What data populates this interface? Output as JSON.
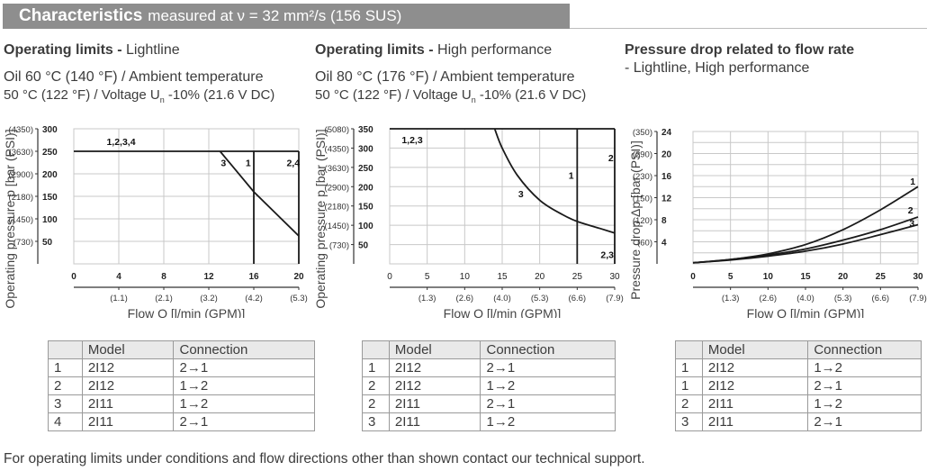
{
  "header": {
    "title_bold": "Characteristics",
    "title_rest": "measured at ν = 32 mm²/s (156 SUS)"
  },
  "sections": [
    {
      "title_bold": "Operating limits -",
      "title_rest": " Lightline",
      "line1": "Oil 60 °C (140 °F) / Ambient temperature",
      "line2": "50 °C (122 °F) / Voltage U",
      "line2_sub": "n",
      "line2_end": " -10% (21.6 V DC)"
    },
    {
      "title_bold": "Operating limits -",
      "title_rest": " High performance",
      "line1": "Oil 80 °C (176 °F) / Ambient temperature",
      "line2": "50 °C (122 °F) / Voltage U",
      "line2_sub": "n",
      "line2_end": " -10% (21.6 V DC)"
    },
    {
      "title_bold": "Pressure drop related to flow rate",
      "title_rest": "",
      "line1": "- Lightline, High performance"
    }
  ],
  "chart_data": [
    {
      "type": "line",
      "title": "Operating limits - Lightline",
      "xlabel": "Flow Q [l/min (GPM)]",
      "ylabel": "Operating pressure p [bar (PSI)]",
      "xlim": [
        0,
        20
      ],
      "ylim": [
        0,
        300
      ],
      "x_ticks": [
        0,
        4,
        8,
        12,
        16,
        20
      ],
      "x_ticks_secondary": [
        "(1.1)",
        "(2.1)",
        "(3.2)",
        "(4.2)",
        "(5.3)"
      ],
      "y_ticks": [
        50,
        100,
        150,
        200,
        250,
        300
      ],
      "y_ticks_secondary": [
        "(730)",
        "(1450)",
        "(2180)",
        "(2900)",
        "(3630)",
        "(4350)"
      ],
      "grid": true,
      "series": [
        {
          "name": "1,2,3,4",
          "points": [
            [
              0,
              250
            ],
            [
              20,
              250
            ]
          ]
        },
        {
          "name": "1",
          "points": [
            [
              16,
              250
            ],
            [
              16,
              0
            ]
          ]
        },
        {
          "name": "2,4",
          "points": [
            [
              20,
              250
            ],
            [
              20,
              0
            ]
          ]
        },
        {
          "name": "3",
          "points": [
            [
              13,
              250
            ],
            [
              16,
              160
            ],
            [
              20,
              62
            ]
          ]
        }
      ],
      "annotations": [
        "1,2,3,4",
        "3",
        "1",
        "2,4"
      ]
    },
    {
      "type": "line",
      "title": "Operating limits - High performance",
      "xlabel": "Flow Q [l/min (GPM)]",
      "ylabel": "Operating pressure p [bar (PSI)]",
      "xlim": [
        0,
        30
      ],
      "ylim": [
        0,
        350
      ],
      "x_ticks": [
        0,
        5,
        10,
        15,
        20,
        25,
        30
      ],
      "x_ticks_secondary": [
        "(1.3)",
        "(2.6)",
        "(4.0)",
        "(5.3)",
        "(6.6)",
        "(7.9)"
      ],
      "y_ticks": [
        50,
        100,
        150,
        200,
        250,
        300,
        350
      ],
      "y_ticks_secondary": [
        "(730)",
        "(1450)",
        "(2180)",
        "(2900)",
        "(3630)",
        "(4350)",
        "(5080)"
      ],
      "grid": true,
      "series": [
        {
          "name": "1,2,3",
          "points": [
            [
              0,
              350
            ],
            [
              30,
              350
            ]
          ]
        },
        {
          "name": "1",
          "points": [
            [
              25,
              350
            ],
            [
              25,
              0
            ]
          ]
        },
        {
          "name": "2",
          "points": [
            [
              30,
              350
            ],
            [
              30,
              0
            ]
          ]
        },
        {
          "name": "3",
          "points": [
            [
              14,
              350
            ],
            [
              15,
              300
            ],
            [
              17,
              230
            ],
            [
              20,
              165
            ],
            [
              23,
              128
            ],
            [
              25,
              110
            ],
            [
              28,
              92
            ],
            [
              30,
              80
            ]
          ]
        }
      ],
      "annotations": [
        "1,2,3",
        "3",
        "1",
        "2",
        "2,3"
      ]
    },
    {
      "type": "line",
      "title": "Pressure drop related to flow rate - Lightline, High performance",
      "xlabel": "Flow Q [l/min (GPM)]",
      "ylabel": "Pressure drop Δp [bar (PSI)]",
      "xlim": [
        0,
        30
      ],
      "ylim": [
        0,
        24
      ],
      "x_ticks": [
        0,
        5,
        10,
        15,
        20,
        25,
        30
      ],
      "x_ticks_secondary": [
        "(1.3)",
        "(2.6)",
        "(4.0)",
        "(5.3)",
        "(6.6)",
        "(7.9)"
      ],
      "y_ticks": [
        4,
        8,
        12,
        16,
        20,
        24
      ],
      "y_ticks_secondary": [
        "(60)",
        "(120)",
        "(150)",
        "(230)",
        "(290)",
        "(350)"
      ],
      "grid": true,
      "series": [
        {
          "name": "1",
          "points": [
            [
              0,
              0.2
            ],
            [
              5,
              0.8
            ],
            [
              10,
              1.8
            ],
            [
              15,
              3.5
            ],
            [
              20,
              6.2
            ],
            [
              25,
              9.8
            ],
            [
              30,
              14
            ]
          ]
        },
        {
          "name": "2",
          "points": [
            [
              0,
              0.2
            ],
            [
              5,
              0.8
            ],
            [
              10,
              1.6
            ],
            [
              15,
              2.7
            ],
            [
              20,
              4.3
            ],
            [
              25,
              6.2
            ],
            [
              30,
              8.5
            ]
          ]
        },
        {
          "name": "3",
          "points": [
            [
              0,
              0.2
            ],
            [
              5,
              0.7
            ],
            [
              10,
              1.4
            ],
            [
              15,
              2.3
            ],
            [
              20,
              3.6
            ],
            [
              25,
              5.3
            ],
            [
              30,
              7.1
            ]
          ]
        }
      ]
    }
  ],
  "tables": [
    {
      "headers": [
        "",
        "Model",
        "Connection"
      ],
      "rows": [
        [
          "1",
          "2I12",
          "2→1"
        ],
        [
          "2",
          "2I12",
          "1→2"
        ],
        [
          "3",
          "2I11",
          "1→2"
        ],
        [
          "4",
          "2I11",
          "2→1"
        ]
      ]
    },
    {
      "headers": [
        "",
        "Model",
        "Connection"
      ],
      "rows": [
        [
          "1",
          "2I12",
          "2→1"
        ],
        [
          "2",
          "2I12",
          "1→2"
        ],
        [
          "2",
          "2I11",
          "2→1"
        ],
        [
          "3",
          "2I11",
          "1→2"
        ]
      ]
    },
    {
      "headers": [
        "",
        "Model",
        "Connection"
      ],
      "rows": [
        [
          "1",
          "2I12",
          "1→2"
        ],
        [
          "1",
          "2I12",
          "2→1"
        ],
        [
          "2",
          "2I11",
          "1→2"
        ],
        [
          "3",
          "2I11",
          "2→1"
        ]
      ]
    }
  ],
  "footnote": "For operating limits under conditions and flow directions other than shown contact our technical support."
}
